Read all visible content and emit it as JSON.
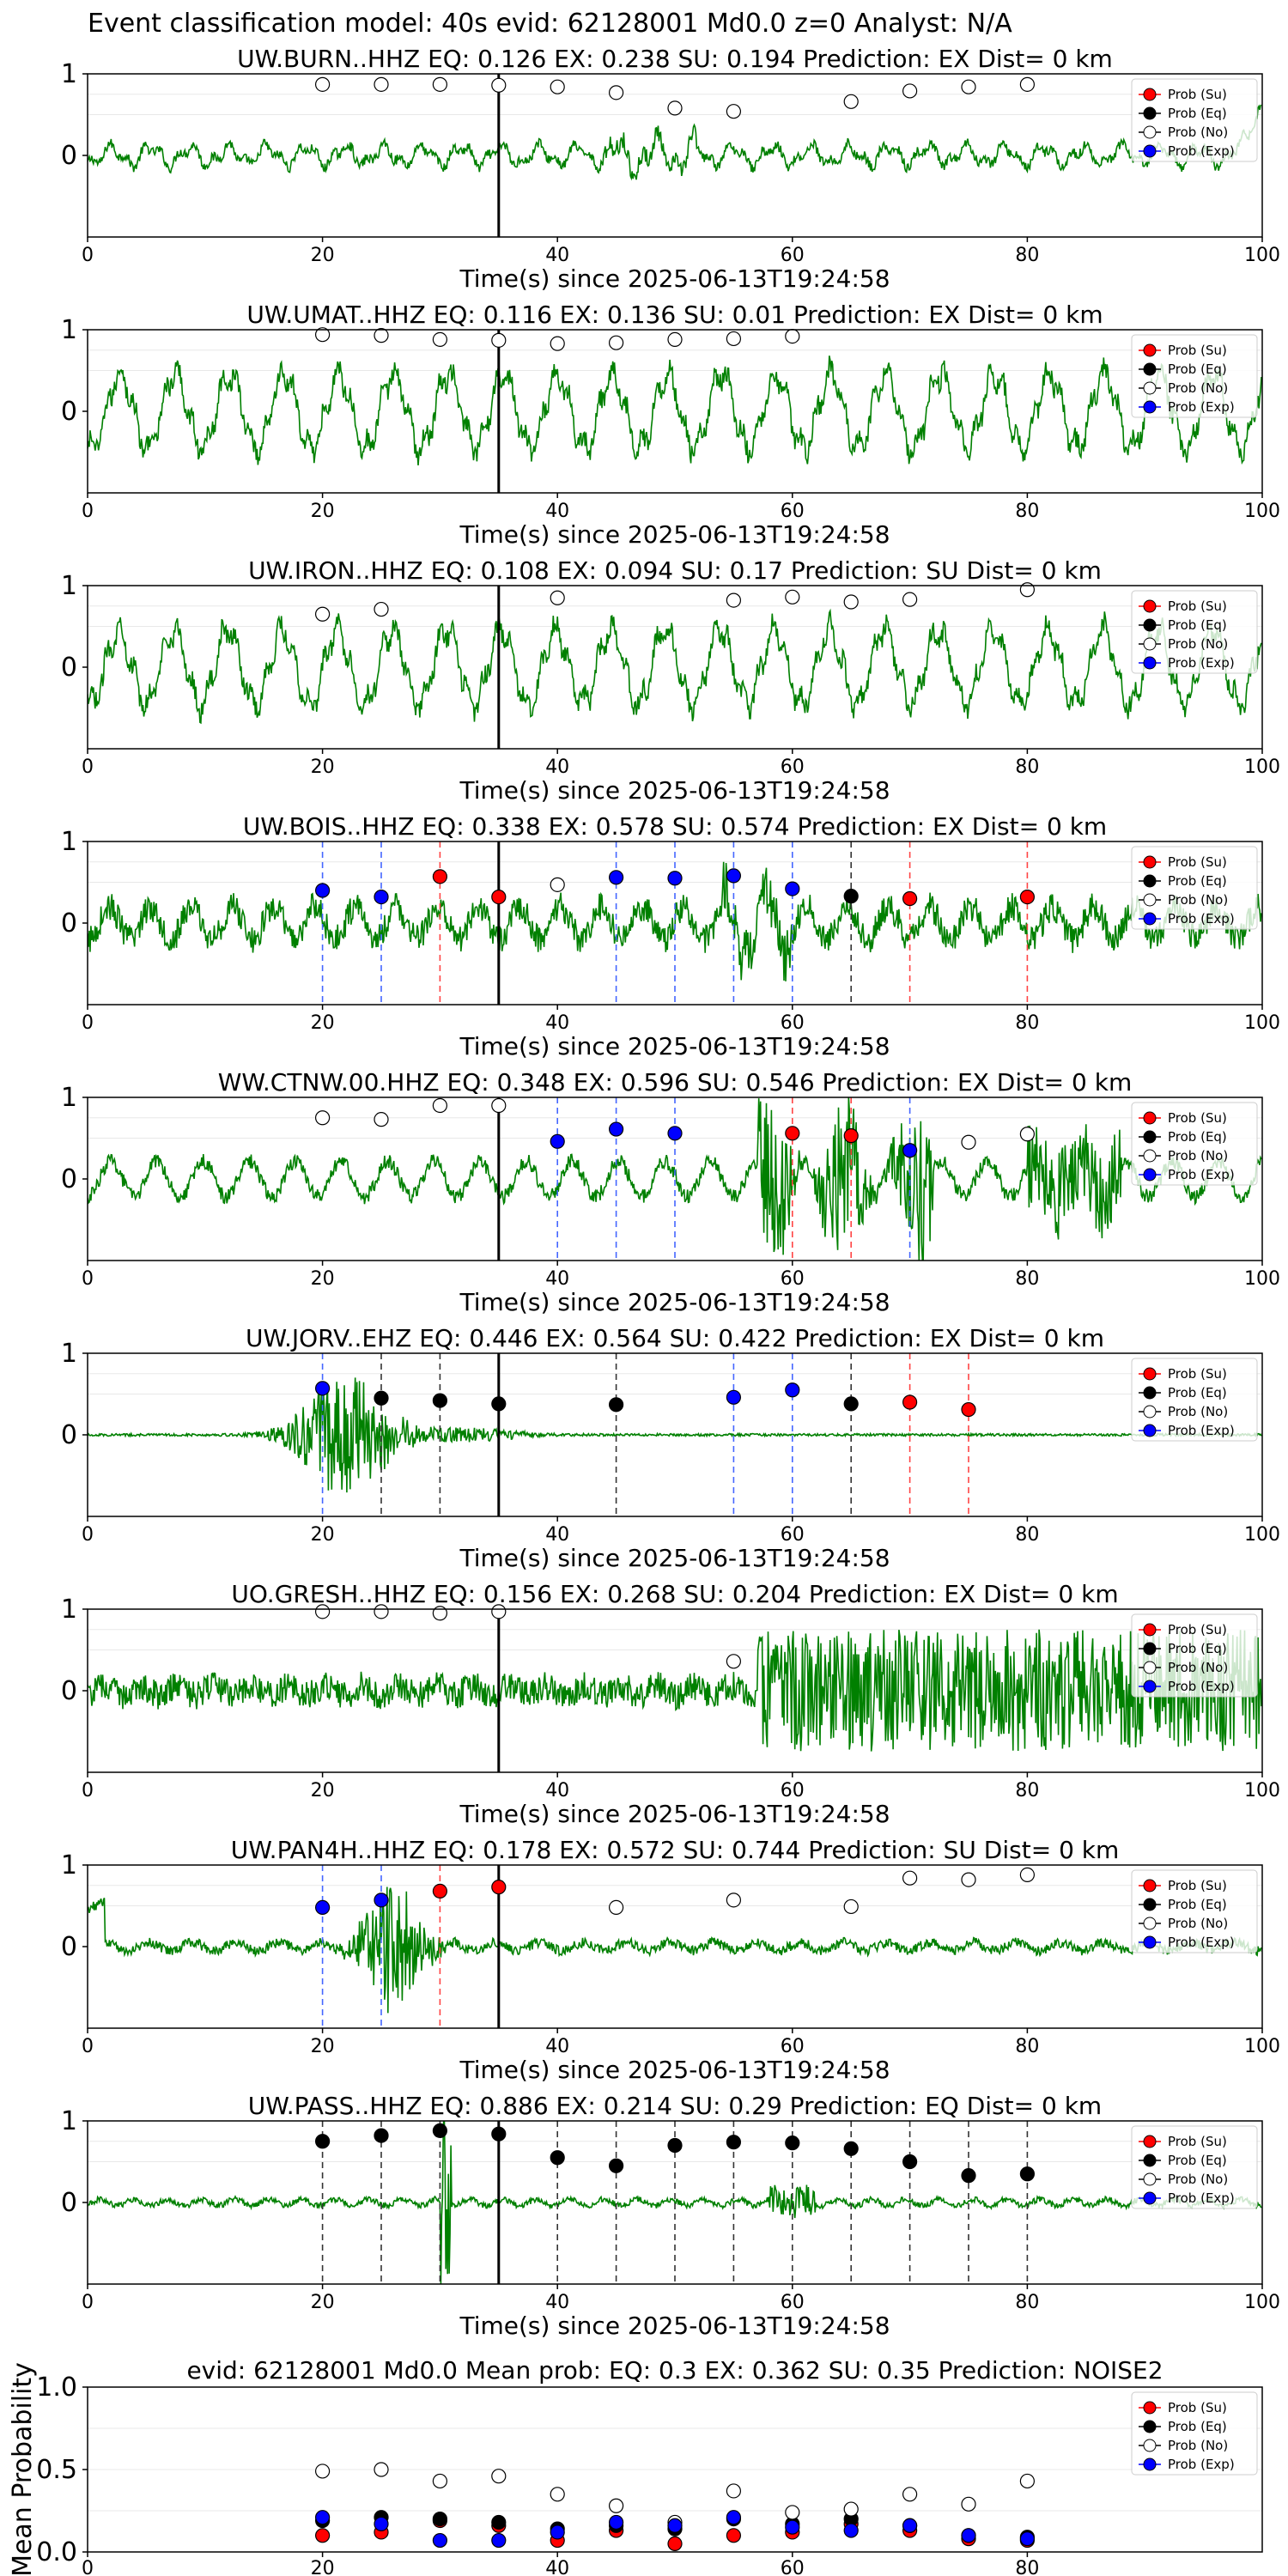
{
  "figure_title": "Event classification model: 40s evid: 62128001 Md0.0 z=0 Analyst: N/A",
  "colors": {
    "waveform": "#008000",
    "su": "#ff0000",
    "eq": "#000000",
    "no": "#ffffff",
    "exp": "#0000ff",
    "window_marker": "#000000"
  },
  "legend": [
    "Prob (Su)",
    "Prob (Eq)",
    "Prob (No)",
    "Prob (Exp)"
  ],
  "chart_data": [
    {
      "type": "line",
      "title": "UW.BURN..HHZ   EQ: 0.126  EX: 0.238  SU: 0.194   Prediction: EX    Dist= 0 km",
      "xlabel": "Time(s) since 2025-06-13T19:24:58",
      "xlim": [
        0,
        100
      ],
      "ylim": [
        -1,
        1
      ],
      "xticks": [
        0,
        20,
        40,
        60,
        80,
        100
      ],
      "yticks": [
        1,
        0
      ],
      "window_marker_x": 35,
      "waveform_style": "low_freq_small",
      "points": [
        {
          "x": 20,
          "y": 0.87,
          "class": "no"
        },
        {
          "x": 25,
          "y": 0.87,
          "class": "no"
        },
        {
          "x": 30,
          "y": 0.87,
          "class": "no"
        },
        {
          "x": 35,
          "y": 0.86,
          "class": "no"
        },
        {
          "x": 40,
          "y": 0.84,
          "class": "no"
        },
        {
          "x": 45,
          "y": 0.77,
          "class": "no"
        },
        {
          "x": 50,
          "y": 0.58,
          "class": "no"
        },
        {
          "x": 55,
          "y": 0.54,
          "class": "no"
        },
        {
          "x": 65,
          "y": 0.66,
          "class": "no"
        },
        {
          "x": 70,
          "y": 0.79,
          "class": "no"
        },
        {
          "x": 75,
          "y": 0.84,
          "class": "no"
        },
        {
          "x": 80,
          "y": 0.87,
          "class": "no"
        }
      ],
      "vlines": []
    },
    {
      "type": "line",
      "title": "UW.UMAT..HHZ   EQ: 0.116  EX: 0.136  SU: 0.01   Prediction: EX    Dist= 0 km",
      "xlabel": "Time(s) since 2025-06-13T19:24:58",
      "xlim": [
        0,
        100
      ],
      "ylim": [
        -1,
        1
      ],
      "xticks": [
        0,
        20,
        40,
        60,
        80,
        100
      ],
      "yticks": [
        1,
        0
      ],
      "window_marker_x": 35,
      "waveform_style": "low_freq_large",
      "points": [
        {
          "x": 20,
          "y": 0.94,
          "class": "no"
        },
        {
          "x": 25,
          "y": 0.93,
          "class": "no"
        },
        {
          "x": 30,
          "y": 0.88,
          "class": "no"
        },
        {
          "x": 35,
          "y": 0.87,
          "class": "no"
        },
        {
          "x": 40,
          "y": 0.83,
          "class": "no"
        },
        {
          "x": 45,
          "y": 0.84,
          "class": "no"
        },
        {
          "x": 50,
          "y": 0.88,
          "class": "no"
        },
        {
          "x": 55,
          "y": 0.89,
          "class": "no"
        },
        {
          "x": 60,
          "y": 0.92,
          "class": "no"
        }
      ],
      "vlines": []
    },
    {
      "type": "line",
      "title": "UW.IRON..HHZ   EQ: 0.108  EX: 0.094  SU: 0.17   Prediction: SU    Dist= 0 km",
      "xlabel": "Time(s) since 2025-06-13T19:24:58",
      "xlim": [
        0,
        100
      ],
      "ylim": [
        -1,
        1
      ],
      "xticks": [
        0,
        20,
        40,
        60,
        80,
        100
      ],
      "yticks": [
        1,
        0
      ],
      "window_marker_x": 35,
      "waveform_style": "low_freq_large",
      "points": [
        {
          "x": 20,
          "y": 0.65,
          "class": "no"
        },
        {
          "x": 25,
          "y": 0.71,
          "class": "no"
        },
        {
          "x": 40,
          "y": 0.85,
          "class": "no"
        },
        {
          "x": 55,
          "y": 0.82,
          "class": "no"
        },
        {
          "x": 60,
          "y": 0.86,
          "class": "no"
        },
        {
          "x": 65,
          "y": 0.8,
          "class": "no"
        },
        {
          "x": 70,
          "y": 0.83,
          "class": "no"
        },
        {
          "x": 80,
          "y": 0.95,
          "class": "no"
        }
      ],
      "vlines": []
    },
    {
      "type": "line",
      "title": "UW.BOIS..HHZ   EQ: 0.338  EX: 0.578  SU: 0.574   Prediction: EX    Dist= 0 km",
      "xlabel": "Time(s) since 2025-06-13T19:24:58",
      "xlim": [
        0,
        100
      ],
      "ylim": [
        -1,
        1
      ],
      "xticks": [
        0,
        20,
        40,
        60,
        80,
        100
      ],
      "yticks": [
        1,
        0
      ],
      "window_marker_x": 35,
      "waveform_style": "mixed_medium",
      "points": [
        {
          "x": 20,
          "y": 0.4,
          "class": "exp"
        },
        {
          "x": 25,
          "y": 0.32,
          "class": "exp"
        },
        {
          "x": 30,
          "y": 0.57,
          "class": "su"
        },
        {
          "x": 35,
          "y": 0.32,
          "class": "su"
        },
        {
          "x": 40,
          "y": 0.47,
          "class": "no"
        },
        {
          "x": 45,
          "y": 0.56,
          "class": "exp"
        },
        {
          "x": 50,
          "y": 0.55,
          "class": "exp"
        },
        {
          "x": 55,
          "y": 0.58,
          "class": "exp"
        },
        {
          "x": 60,
          "y": 0.42,
          "class": "exp"
        },
        {
          "x": 65,
          "y": 0.33,
          "class": "eq"
        },
        {
          "x": 70,
          "y": 0.3,
          "class": "su"
        },
        {
          "x": 80,
          "y": 0.32,
          "class": "su"
        }
      ],
      "vlines": [
        {
          "x": 20,
          "class": "exp"
        },
        {
          "x": 25,
          "class": "exp"
        },
        {
          "x": 30,
          "class": "su"
        },
        {
          "x": 45,
          "class": "exp"
        },
        {
          "x": 50,
          "class": "exp"
        },
        {
          "x": 55,
          "class": "exp"
        },
        {
          "x": 60,
          "class": "exp"
        },
        {
          "x": 65,
          "class": "eq"
        },
        {
          "x": 70,
          "class": "su"
        },
        {
          "x": 80,
          "class": "su"
        }
      ]
    },
    {
      "type": "line",
      "title": "WW.CTNW.00.HHZ   EQ: 0.348  EX: 0.596  SU: 0.546   Prediction: EX    Dist= 0 km",
      "xlabel": "Time(s) since 2025-06-13T19:24:58",
      "xlim": [
        0,
        100
      ],
      "ylim": [
        -1,
        1
      ],
      "xticks": [
        0,
        20,
        40,
        60,
        80,
        100
      ],
      "yticks": [
        1,
        0
      ],
      "window_marker_x": 35,
      "waveform_style": "burst_60",
      "points": [
        {
          "x": 20,
          "y": 0.75,
          "class": "no"
        },
        {
          "x": 25,
          "y": 0.73,
          "class": "no"
        },
        {
          "x": 30,
          "y": 0.9,
          "class": "no"
        },
        {
          "x": 35,
          "y": 0.9,
          "class": "no"
        },
        {
          "x": 40,
          "y": 0.46,
          "class": "exp"
        },
        {
          "x": 45,
          "y": 0.61,
          "class": "exp"
        },
        {
          "x": 50,
          "y": 0.56,
          "class": "exp"
        },
        {
          "x": 60,
          "y": 0.56,
          "class": "su"
        },
        {
          "x": 65,
          "y": 0.53,
          "class": "su"
        },
        {
          "x": 70,
          "y": 0.35,
          "class": "exp"
        },
        {
          "x": 75,
          "y": 0.45,
          "class": "no"
        },
        {
          "x": 80,
          "y": 0.55,
          "class": "no"
        }
      ],
      "vlines": [
        {
          "x": 40,
          "class": "exp"
        },
        {
          "x": 45,
          "class": "exp"
        },
        {
          "x": 50,
          "class": "exp"
        },
        {
          "x": 60,
          "class": "su"
        },
        {
          "x": 65,
          "class": "su"
        },
        {
          "x": 70,
          "class": "exp"
        }
      ]
    },
    {
      "type": "line",
      "title": "UW.JORV..EHZ   EQ: 0.446  EX: 0.564  SU: 0.422   Prediction: EX    Dist= 0 km",
      "xlabel": "Time(s) since 2025-06-13T19:24:58",
      "xlim": [
        0,
        100
      ],
      "ylim": [
        -1,
        1
      ],
      "xticks": [
        0,
        20,
        40,
        60,
        80,
        100
      ],
      "yticks": [
        1,
        0
      ],
      "window_marker_x": 35,
      "waveform_style": "burst_early",
      "points": [
        {
          "x": 20,
          "y": 0.57,
          "class": "exp"
        },
        {
          "x": 25,
          "y": 0.45,
          "class": "eq"
        },
        {
          "x": 30,
          "y": 0.42,
          "class": "eq"
        },
        {
          "x": 35,
          "y": 0.38,
          "class": "eq"
        },
        {
          "x": 45,
          "y": 0.37,
          "class": "eq"
        },
        {
          "x": 55,
          "y": 0.46,
          "class": "exp"
        },
        {
          "x": 60,
          "y": 0.55,
          "class": "exp"
        },
        {
          "x": 65,
          "y": 0.38,
          "class": "eq"
        },
        {
          "x": 70,
          "y": 0.4,
          "class": "su"
        },
        {
          "x": 75,
          "y": 0.31,
          "class": "su"
        }
      ],
      "vlines": [
        {
          "x": 20,
          "class": "exp"
        },
        {
          "x": 25,
          "class": "eq"
        },
        {
          "x": 30,
          "class": "eq"
        },
        {
          "x": 45,
          "class": "eq"
        },
        {
          "x": 55,
          "class": "exp"
        },
        {
          "x": 60,
          "class": "exp"
        },
        {
          "x": 65,
          "class": "eq"
        },
        {
          "x": 70,
          "class": "su"
        },
        {
          "x": 75,
          "class": "su"
        }
      ]
    },
    {
      "type": "line",
      "title": "UO.GRESH..HHZ   EQ: 0.156  EX: 0.268  SU: 0.204   Prediction: EX    Dist= 0 km",
      "xlabel": "Time(s) since 2025-06-13T19:24:58",
      "xlim": [
        0,
        100
      ],
      "ylim": [
        -1,
        1
      ],
      "xticks": [
        0,
        20,
        40,
        60,
        80,
        100
      ],
      "yticks": [
        1,
        0
      ],
      "window_marker_x": 35,
      "waveform_style": "burst_late",
      "points": [
        {
          "x": 20,
          "y": 0.97,
          "class": "no"
        },
        {
          "x": 25,
          "y": 0.97,
          "class": "no"
        },
        {
          "x": 30,
          "y": 0.95,
          "class": "no"
        },
        {
          "x": 35,
          "y": 0.97,
          "class": "no"
        },
        {
          "x": 55,
          "y": 0.36,
          "class": "no"
        }
      ],
      "vlines": []
    },
    {
      "type": "line",
      "title": "UW.PAN4H..HHZ   EQ: 0.178  EX: 0.572  SU: 0.744   Prediction: SU    Dist= 0 km",
      "xlabel": "Time(s) since 2025-06-13T19:24:58",
      "xlim": [
        0,
        100
      ],
      "ylim": [
        -1,
        1
      ],
      "xticks": [
        0,
        20,
        40,
        60,
        80,
        100
      ],
      "yticks": [
        1,
        0
      ],
      "window_marker_x": 35,
      "waveform_style": "burst_early_small",
      "points": [
        {
          "x": 20,
          "y": 0.48,
          "class": "exp"
        },
        {
          "x": 25,
          "y": 0.57,
          "class": "exp"
        },
        {
          "x": 30,
          "y": 0.68,
          "class": "su"
        },
        {
          "x": 35,
          "y": 0.73,
          "class": "su"
        },
        {
          "x": 45,
          "y": 0.48,
          "class": "no"
        },
        {
          "x": 55,
          "y": 0.57,
          "class": "no"
        },
        {
          "x": 65,
          "y": 0.49,
          "class": "no"
        },
        {
          "x": 70,
          "y": 0.84,
          "class": "no"
        },
        {
          "x": 75,
          "y": 0.82,
          "class": "no"
        },
        {
          "x": 80,
          "y": 0.88,
          "class": "no"
        }
      ],
      "vlines": [
        {
          "x": 20,
          "class": "exp"
        },
        {
          "x": 25,
          "class": "exp"
        },
        {
          "x": 30,
          "class": "su"
        }
      ]
    },
    {
      "type": "line",
      "title": "UW.PASS..HHZ   EQ: 0.886  EX: 0.214  SU: 0.29   Prediction: EQ    Dist= 0 km",
      "xlabel": "Time(s) since 2025-06-13T19:24:58",
      "xlim": [
        0,
        100
      ],
      "ylim": [
        -1,
        1
      ],
      "xticks": [
        0,
        20,
        40,
        60,
        80,
        100
      ],
      "yticks": [
        1,
        0
      ],
      "window_marker_x": 35,
      "waveform_style": "quiet_spikes",
      "points": [
        {
          "x": 20,
          "y": 0.75,
          "class": "eq"
        },
        {
          "x": 25,
          "y": 0.82,
          "class": "eq"
        },
        {
          "x": 30,
          "y": 0.88,
          "class": "eq"
        },
        {
          "x": 35,
          "y": 0.84,
          "class": "eq"
        },
        {
          "x": 40,
          "y": 0.55,
          "class": "eq"
        },
        {
          "x": 45,
          "y": 0.45,
          "class": "eq"
        },
        {
          "x": 50,
          "y": 0.7,
          "class": "eq"
        },
        {
          "x": 55,
          "y": 0.74,
          "class": "eq"
        },
        {
          "x": 60,
          "y": 0.73,
          "class": "eq"
        },
        {
          "x": 65,
          "y": 0.66,
          "class": "eq"
        },
        {
          "x": 70,
          "y": 0.5,
          "class": "eq"
        },
        {
          "x": 75,
          "y": 0.33,
          "class": "eq"
        },
        {
          "x": 80,
          "y": 0.35,
          "class": "eq"
        }
      ],
      "vlines": [
        {
          "x": 20,
          "class": "eq"
        },
        {
          "x": 25,
          "class": "eq"
        },
        {
          "x": 30,
          "class": "eq"
        },
        {
          "x": 40,
          "class": "eq"
        },
        {
          "x": 45,
          "class": "eq"
        },
        {
          "x": 50,
          "class": "eq"
        },
        {
          "x": 55,
          "class": "eq"
        },
        {
          "x": 60,
          "class": "eq"
        },
        {
          "x": 65,
          "class": "eq"
        },
        {
          "x": 70,
          "class": "eq"
        },
        {
          "x": 75,
          "class": "eq"
        },
        {
          "x": 80,
          "class": "eq"
        }
      ]
    },
    {
      "type": "scatter",
      "title": "evid: 62128001  Md0.0   Mean prob:    EQ: 0.3  EX: 0.362  SU: 0.35   Prediction: NOISE2",
      "ylabel": "Mean Probability",
      "xlim": [
        0,
        100
      ],
      "ylim": [
        0,
        1
      ],
      "xticks": [
        0,
        20,
        40,
        60,
        80
      ],
      "yticks": [
        1.0,
        0.5,
        0.0
      ],
      "series": [
        {
          "name": "Prob (Su)",
          "class": "su",
          "x": [
            20,
            25,
            30,
            35,
            40,
            45,
            50,
            55,
            60,
            65,
            70,
            75,
            80
          ],
          "y": [
            0.1,
            0.12,
            0.19,
            0.16,
            0.07,
            0.13,
            0.05,
            0.1,
            0.12,
            0.17,
            0.13,
            0.08,
            0.07
          ]
        },
        {
          "name": "Prob (Eq)",
          "class": "eq",
          "x": [
            20,
            25,
            30,
            35,
            40,
            45,
            50,
            55,
            60,
            65,
            70,
            75,
            80
          ],
          "y": [
            0.19,
            0.21,
            0.2,
            0.18,
            0.14,
            0.16,
            0.14,
            0.2,
            0.17,
            0.2,
            0.16,
            0.1,
            0.09
          ]
        },
        {
          "name": "Prob (No)",
          "class": "no",
          "x": [
            20,
            25,
            30,
            35,
            40,
            45,
            50,
            55,
            60,
            65,
            70,
            75,
            80
          ],
          "y": [
            0.49,
            0.5,
            0.43,
            0.46,
            0.35,
            0.28,
            0.18,
            0.37,
            0.24,
            0.26,
            0.35,
            0.29,
            0.43
          ]
        },
        {
          "name": "Prob (Exp)",
          "class": "exp",
          "x": [
            20,
            25,
            30,
            35,
            40,
            45,
            50,
            55,
            60,
            65,
            70,
            75,
            80
          ],
          "y": [
            0.21,
            0.17,
            0.07,
            0.07,
            0.12,
            0.18,
            0.16,
            0.21,
            0.15,
            0.13,
            0.16,
            0.1,
            0.08
          ]
        }
      ]
    }
  ]
}
